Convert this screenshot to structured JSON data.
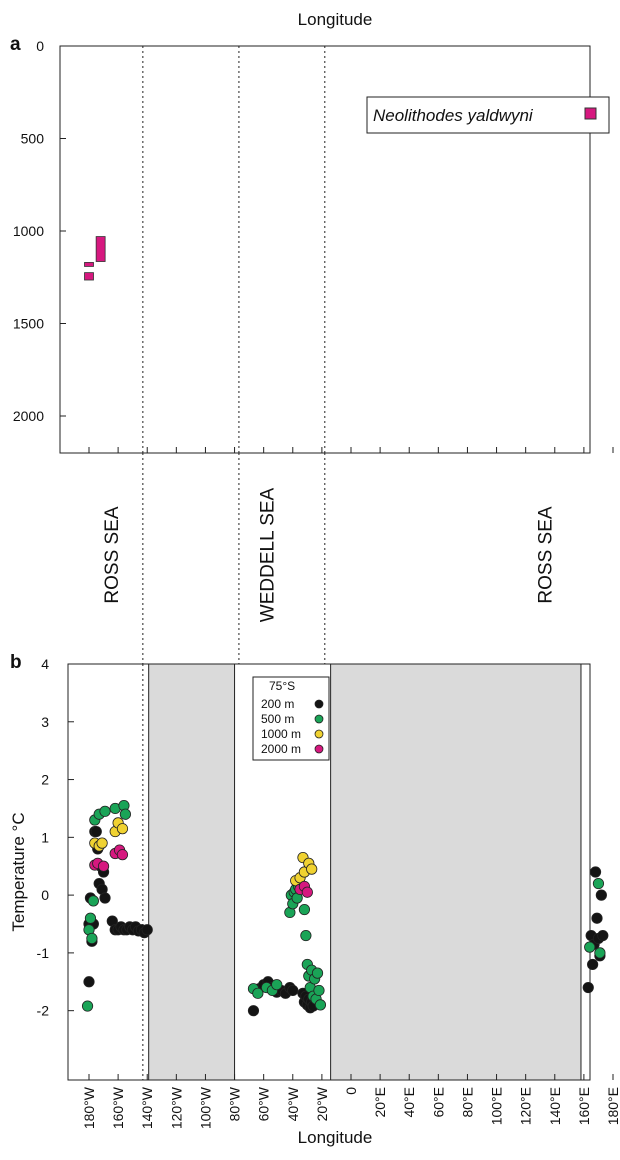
{
  "chart_data": [
    {
      "panel": "a",
      "type": "depth-range",
      "title": "Longitude",
      "ylim": [
        2200,
        0
      ],
      "yticks": [
        0,
        500,
        1000,
        1500,
        2000
      ],
      "ytick_labels": [
        "0",
        "500",
        "1000",
        "1500",
        "2000"
      ],
      "xlim": [
        -190,
        185
      ],
      "divider_longitudes": [
        -143,
        -77,
        -18
      ],
      "legend": {
        "label": "Neolithodes yaldwyni",
        "color": "#d6187f",
        "placement": "top-right"
      },
      "series": [
        {
          "name": "Neolithodes yaldwyni",
          "color": "#d6187f",
          "ranges": [
            {
              "lon": -180,
              "min_depth": 1225,
              "max_depth": 1265
            },
            {
              "lon": -180,
              "min_depth": 1170,
              "max_depth": 1190
            },
            {
              "lon": -172,
              "min_depth": 1030,
              "max_depth": 1165
            }
          ]
        }
      ],
      "regions": [
        "ROSS SEA",
        "WEDDELL SEA",
        "ROSS SEA"
      ]
    },
    {
      "panel": "b",
      "type": "scatter",
      "xlabel": "Longitude",
      "ylabel": "Temperature °C",
      "ylim": [
        -3.2,
        4
      ],
      "yticks": [
        -2,
        -1,
        0,
        1,
        2,
        3,
        4
      ],
      "ytick_labels": [
        "-2",
        "-1",
        "0",
        "1",
        "2",
        "3",
        "4"
      ],
      "xlim": [
        -190,
        185
      ],
      "xticks": [
        -180,
        -160,
        -140,
        -120,
        -100,
        -80,
        -60,
        -40,
        -20,
        0,
        20,
        40,
        60,
        80,
        100,
        120,
        140,
        160,
        180
      ],
      "xtick_labels": [
        "180°W",
        "160°W",
        "140°W",
        "120°W",
        "100°W",
        "80°W",
        "60°W",
        "40°W",
        "20°W",
        "0",
        "20°E",
        "40°E",
        "60°E",
        "80°E",
        "100°E",
        "120°E",
        "140°E",
        "160°E",
        "180°E"
      ],
      "divider_longitudes": [
        -143
      ],
      "shaded_ranges": [
        [
          -139,
          -80
        ],
        [
          -14,
          158
        ]
      ],
      "legend": {
        "title": "75°S",
        "placement": "top-center",
        "entries": [
          {
            "label": "200 m",
            "color": "#141414"
          },
          {
            "label": "500 m",
            "color": "#1aa457"
          },
          {
            "label": "1000 m",
            "color": "#f0d231"
          },
          {
            "label": "2000 m",
            "color": "#d6187f"
          }
        ]
      },
      "series": [
        {
          "name": "200 m",
          "color": "#141414",
          "points": [
            [
              -180,
              -1.5
            ],
            [
              -180,
              -0.5
            ],
            [
              -179,
              -0.05
            ],
            [
              -178,
              -0.8
            ],
            [
              -177,
              -0.5
            ],
            [
              -176,
              1.1
            ],
            [
              -175,
              1.1
            ],
            [
              -174,
              0.8
            ],
            [
              -173,
              0.2
            ],
            [
              -172,
              0.5
            ],
            [
              -171,
              0.1
            ],
            [
              -170,
              0.4
            ],
            [
              -169,
              -0.05
            ],
            [
              -164,
              -0.45
            ],
            [
              -162,
              -0.6
            ],
            [
              -160,
              -0.6
            ],
            [
              -158,
              -0.55
            ],
            [
              -156,
              -0.6
            ],
            [
              -154,
              -0.6
            ],
            [
              -152,
              -0.55
            ],
            [
              -150,
              -0.6
            ],
            [
              -148,
              -0.55
            ],
            [
              -146,
              -0.62
            ],
            [
              -144,
              -0.6
            ],
            [
              -142,
              -0.65
            ],
            [
              -140,
              -0.6
            ],
            [
              -67,
              -2.0
            ],
            [
              -63,
              -1.62
            ],
            [
              -60,
              -1.55
            ],
            [
              -57,
              -1.5
            ],
            [
              -54,
              -1.6
            ],
            [
              -51,
              -1.68
            ],
            [
              -48,
              -1.65
            ],
            [
              -45,
              -1.7
            ],
            [
              -42,
              -1.6
            ],
            [
              -40,
              -1.65
            ],
            [
              -33,
              -1.7
            ],
            [
              -32,
              -1.85
            ],
            [
              -31,
              -1.75
            ],
            [
              -30,
              -1.9
            ],
            [
              -29,
              -1.8
            ],
            [
              -28,
              -1.95
            ],
            [
              -27,
              -1.85
            ],
            [
              -26,
              -1.92
            ],
            [
              163,
              -1.6
            ],
            [
              165,
              -0.7
            ],
            [
              166,
              -1.2
            ],
            [
              167,
              -0.85
            ],
            [
              168,
              0.4
            ],
            [
              169,
              -0.4
            ],
            [
              170,
              -0.75
            ],
            [
              171,
              -1.05
            ],
            [
              172,
              0.0
            ],
            [
              173,
              -0.7
            ]
          ]
        },
        {
          "name": "500 m",
          "color": "#1aa457",
          "points": [
            [
              -181,
              -1.92
            ],
            [
              -180,
              -0.6
            ],
            [
              -179,
              -0.4
            ],
            [
              -178,
              -0.75
            ],
            [
              -177,
              -0.1
            ],
            [
              -176,
              1.3
            ],
            [
              -173,
              1.4
            ],
            [
              -169,
              1.45
            ],
            [
              -162,
              1.5
            ],
            [
              -156,
              1.55
            ],
            [
              -155,
              1.4
            ],
            [
              -67,
              -1.62
            ],
            [
              -64,
              -1.7
            ],
            [
              -58,
              -1.6
            ],
            [
              -54,
              -1.65
            ],
            [
              -51,
              -1.55
            ],
            [
              -42,
              -0.3
            ],
            [
              -41,
              0.0
            ],
            [
              -40,
              -0.15
            ],
            [
              -39,
              0.05
            ],
            [
              -38,
              0.1
            ],
            [
              -37,
              -0.05
            ],
            [
              -36,
              0.15
            ],
            [
              -35,
              0.2
            ],
            [
              -32,
              -0.25
            ],
            [
              -31,
              -0.7
            ],
            [
              -30,
              -1.2
            ],
            [
              -29,
              -1.4
            ],
            [
              -28,
              -1.6
            ],
            [
              -27,
              -1.3
            ],
            [
              -26,
              -1.75
            ],
            [
              -25,
              -1.45
            ],
            [
              -24,
              -1.8
            ],
            [
              -23,
              -1.35
            ],
            [
              -22,
              -1.65
            ],
            [
              -21,
              -1.9
            ],
            [
              164,
              -0.9
            ],
            [
              170,
              0.2
            ],
            [
              171,
              -1.0
            ]
          ]
        },
        {
          "name": "1000 m",
          "color": "#f0d231",
          "points": [
            [
              -176,
              0.9
            ],
            [
              -173,
              0.85
            ],
            [
              -171,
              0.9
            ],
            [
              -162,
              1.1
            ],
            [
              -160,
              1.25
            ],
            [
              -157,
              1.15
            ],
            [
              -38,
              0.25
            ],
            [
              -35,
              0.3
            ],
            [
              -33,
              0.65
            ],
            [
              -32,
              0.4
            ],
            [
              -29,
              0.55
            ],
            [
              -27,
              0.45
            ]
          ]
        },
        {
          "name": "2000 m",
          "color": "#d6187f",
          "points": [
            [
              -176,
              0.52
            ],
            [
              -174,
              0.55
            ],
            [
              -170,
              0.5
            ],
            [
              -162,
              0.72
            ],
            [
              -159,
              0.78
            ],
            [
              -157,
              0.7
            ],
            [
              -35,
              0.1
            ],
            [
              -32,
              0.15
            ],
            [
              -30,
              0.05
            ]
          ]
        }
      ]
    }
  ]
}
